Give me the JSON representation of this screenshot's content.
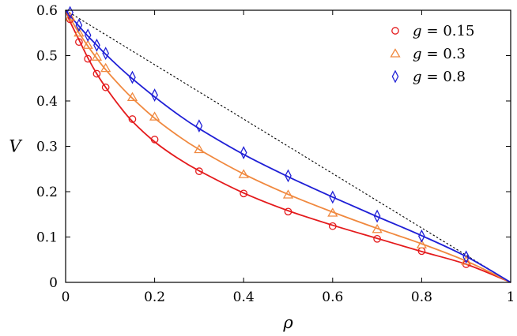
{
  "chart_data": {
    "type": "scatter",
    "title": "",
    "xlabel": "ρ",
    "ylabel": "V",
    "xlim": [
      0,
      1
    ],
    "ylim": [
      0,
      0.6
    ],
    "x_ticks": [
      0,
      0.2,
      0.4,
      0.6,
      0.8,
      1
    ],
    "x_tick_labels": [
      "0",
      "0.2",
      "0.4",
      "0.6",
      "0.8",
      "1"
    ],
    "y_ticks": [
      0,
      0.1,
      0.2,
      0.3,
      0.4,
      0.5,
      0.6
    ],
    "y_tick_labels": [
      "0",
      "0.1",
      "0.2",
      "0.3",
      "0.4",
      "0.5",
      "0.6"
    ],
    "grid": false,
    "legend_position": "top-right",
    "reference_line": {
      "style": "dotted",
      "color": "#000000",
      "points": [
        [
          0,
          0.6
        ],
        [
          1,
          0
        ]
      ]
    },
    "series": [
      {
        "name": "g = 0.15",
        "legend_var": "g",
        "legend_value": "= 0.15",
        "marker": "circle",
        "color": "#e41a1c",
        "x": [
          0.01,
          0.03,
          0.05,
          0.07,
          0.09,
          0.15,
          0.2,
          0.3,
          0.4,
          0.5,
          0.6,
          0.7,
          0.8,
          0.9
        ],
        "y": [
          0.58,
          0.53,
          0.493,
          0.46,
          0.43,
          0.36,
          0.315,
          0.245,
          0.196,
          0.156,
          0.124,
          0.096,
          0.069,
          0.04
        ],
        "fit_curve": {
          "x": [
            0,
            0.01,
            0.03,
            0.05,
            0.07,
            0.09,
            0.12,
            0.15,
            0.2,
            0.25,
            0.3,
            0.4,
            0.5,
            0.6,
            0.7,
            0.8,
            0.9,
            1
          ],
          "y": [
            0.6,
            0.575,
            0.535,
            0.495,
            0.46,
            0.43,
            0.39,
            0.355,
            0.31,
            0.275,
            0.246,
            0.197,
            0.158,
            0.126,
            0.097,
            0.068,
            0.04,
            0
          ]
        }
      },
      {
        "name": "g = 0.3",
        "legend_var": "g",
        "legend_value": "= 0.3",
        "marker": "triangle",
        "color": "#f0883e",
        "x": [
          0.01,
          0.03,
          0.05,
          0.07,
          0.09,
          0.15,
          0.2,
          0.3,
          0.4,
          0.5,
          0.6,
          0.7,
          0.8,
          0.9
        ],
        "y": [
          0.585,
          0.55,
          0.523,
          0.497,
          0.472,
          0.408,
          0.365,
          0.293,
          0.238,
          0.193,
          0.153,
          0.117,
          0.083,
          0.047
        ],
        "fit_curve": {
          "x": [
            0,
            0.01,
            0.03,
            0.05,
            0.07,
            0.09,
            0.12,
            0.15,
            0.2,
            0.25,
            0.3,
            0.4,
            0.5,
            0.6,
            0.7,
            0.8,
            0.9,
            1
          ],
          "y": [
            0.6,
            0.583,
            0.55,
            0.521,
            0.494,
            0.469,
            0.436,
            0.406,
            0.362,
            0.325,
            0.293,
            0.239,
            0.194,
            0.155,
            0.119,
            0.085,
            0.047,
            0
          ]
        }
      },
      {
        "name": "g = 0.8",
        "legend_var": "g",
        "legend_value": "= 0.8",
        "marker": "diamond",
        "color": "#1f1fd6",
        "x": [
          0.01,
          0.03,
          0.05,
          0.07,
          0.09,
          0.15,
          0.2,
          0.3,
          0.4,
          0.5,
          0.6,
          0.7,
          0.8,
          0.9
        ],
        "y": [
          0.595,
          0.567,
          0.545,
          0.523,
          0.505,
          0.452,
          0.413,
          0.345,
          0.286,
          0.235,
          0.188,
          0.146,
          0.102,
          0.056
        ],
        "fit_curve": {
          "x": [
            0,
            0.01,
            0.03,
            0.05,
            0.07,
            0.09,
            0.12,
            0.15,
            0.2,
            0.25,
            0.3,
            0.4,
            0.5,
            0.6,
            0.7,
            0.8,
            0.9,
            1
          ],
          "y": [
            0.6,
            0.588,
            0.565,
            0.543,
            0.523,
            0.503,
            0.475,
            0.449,
            0.409,
            0.372,
            0.339,
            0.282,
            0.233,
            0.188,
            0.145,
            0.103,
            0.057,
            0
          ]
        }
      }
    ]
  }
}
